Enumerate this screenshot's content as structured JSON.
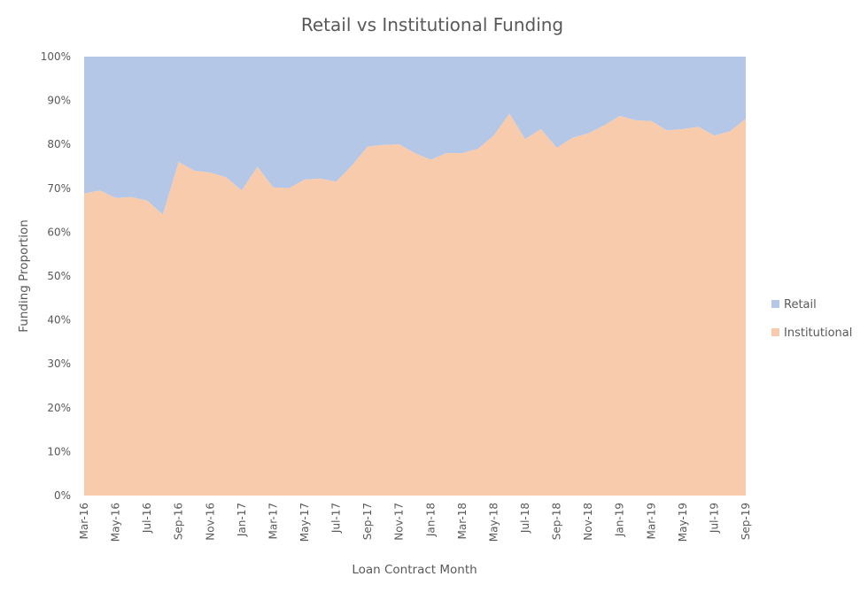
{
  "chart_data": {
    "type": "area",
    "stacked": "percent",
    "title": "Retail vs Institutional Funding",
    "xlabel": "Loan Contract Month",
    "ylabel": "Funding Proportion",
    "ylim": [
      0,
      100
    ],
    "y_ticks": [
      "0%",
      "10%",
      "20%",
      "30%",
      "40%",
      "50%",
      "60%",
      "70%",
      "80%",
      "90%",
      "100%"
    ],
    "x": [
      "Mar-16",
      "Apr-16",
      "May-16",
      "Jun-16",
      "Jul-16",
      "Aug-16",
      "Sep-16",
      "Oct-16",
      "Nov-16",
      "Dec-16",
      "Jan-17",
      "Feb-17",
      "Mar-17",
      "Apr-17",
      "May-17",
      "Jun-17",
      "Jul-17",
      "Aug-17",
      "Sep-17",
      "Oct-17",
      "Nov-17",
      "Dec-17",
      "Jan-18",
      "Feb-18",
      "Mar-18",
      "Apr-18",
      "May-18",
      "Jun-18",
      "Jul-18",
      "Aug-18",
      "Sep-18",
      "Oct-18",
      "Nov-18",
      "Dec-18",
      "Jan-19",
      "Feb-19",
      "Mar-19",
      "Apr-19",
      "May-19",
      "Jun-19",
      "Jul-19",
      "Aug-19",
      "Sep-19"
    ],
    "x_tick_labels": [
      "Mar-16",
      "May-16",
      "Jul-16",
      "Sep-16",
      "Nov-16",
      "Jan-17",
      "Mar-17",
      "May-17",
      "Jul-17",
      "Sep-17",
      "Nov-17",
      "Jan-18",
      "Mar-18",
      "May-18",
      "Jul-18",
      "Sep-18",
      "Nov-18",
      "Jan-19",
      "Mar-19",
      "May-19",
      "Jul-19",
      "Sep-19"
    ],
    "series": [
      {
        "name": "Institutional",
        "color": "#f8cbad",
        "values": [
          68.8,
          69.5,
          67.8,
          68.0,
          67.2,
          64.0,
          76.0,
          74.0,
          73.6,
          72.5,
          69.5,
          74.9,
          70.2,
          70.0,
          72.0,
          72.2,
          71.5,
          75.2,
          79.5,
          79.9,
          80.0,
          78.0,
          76.5,
          78.0,
          78.0,
          79.0,
          82.0,
          87.0,
          81.2,
          83.5,
          79.2,
          81.5,
          82.5,
          84.3,
          86.5,
          85.5,
          85.3,
          83.2,
          83.5,
          84.0,
          82.0,
          83.0,
          85.8
        ]
      },
      {
        "name": "Retail",
        "color": "#b4c7e7",
        "values": [
          31.2,
          30.5,
          32.2,
          32.0,
          32.8,
          36.0,
          24.0,
          26.0,
          26.4,
          27.5,
          30.5,
          25.1,
          29.8,
          30.0,
          28.0,
          27.8,
          28.5,
          24.8,
          20.5,
          20.1,
          20.0,
          22.0,
          23.5,
          22.0,
          22.0,
          21.0,
          18.0,
          13.0,
          18.8,
          16.5,
          20.8,
          18.5,
          17.5,
          15.7,
          13.5,
          14.5,
          14.7,
          16.8,
          16.5,
          16.0,
          18.0,
          17.0,
          14.2
        ]
      }
    ],
    "legend": {
      "position": "right",
      "entries": [
        "Retail",
        "Institutional"
      ]
    }
  }
}
